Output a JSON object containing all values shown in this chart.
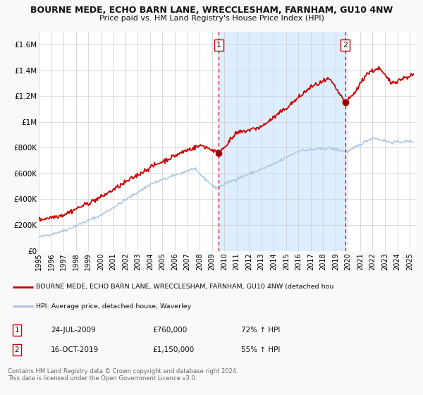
{
  "title": "BOURNE MEDE, ECHO BARN LANE, WRECCLESHAM, FARNHAM, GU10 4NW",
  "subtitle": "Price paid vs. HM Land Registry's House Price Index (HPI)",
  "xlim": [
    1995.0,
    2025.5
  ],
  "ylim": [
    0,
    1700000
  ],
  "yticks": [
    0,
    200000,
    400000,
    600000,
    800000,
    1000000,
    1200000,
    1400000,
    1600000
  ],
  "ytick_labels": [
    "£0",
    "£200K",
    "£400K",
    "£600K",
    "£800K",
    "£1M",
    "£1.2M",
    "£1.4M",
    "£1.6M"
  ],
  "hpi_color": "#aac4e0",
  "price_color": "#cc0000",
  "sale1_x": 2009.56,
  "sale1_y": 760000,
  "sale2_x": 2019.79,
  "sale2_y": 1150000,
  "marker_color": "#990000",
  "vline_color": "#cc0000",
  "highlight_fill": "#ddeeff",
  "legend_label_red": "BOURNE MEDE, ECHO BARN LANE, WRECCLESHAM, FARNHAM, GU10 4NW (detached hou",
  "legend_label_blue": "HPI: Average price, detached house, Waverley",
  "table_row1_num": "1",
  "table_row1_date": "24-JUL-2009",
  "table_row1_price": "£760,000",
  "table_row1_hpi": "72% ↑ HPI",
  "table_row2_num": "2",
  "table_row2_date": "16-OCT-2019",
  "table_row2_price": "£1,150,000",
  "table_row2_hpi": "55% ↑ HPI",
  "footnote1": "Contains HM Land Registry data © Crown copyright and database right 2024.",
  "footnote2": "This data is licensed under the Open Government Licence v3.0.",
  "background_color": "#f9f9f9",
  "plot_bg_color": "#ffffff"
}
